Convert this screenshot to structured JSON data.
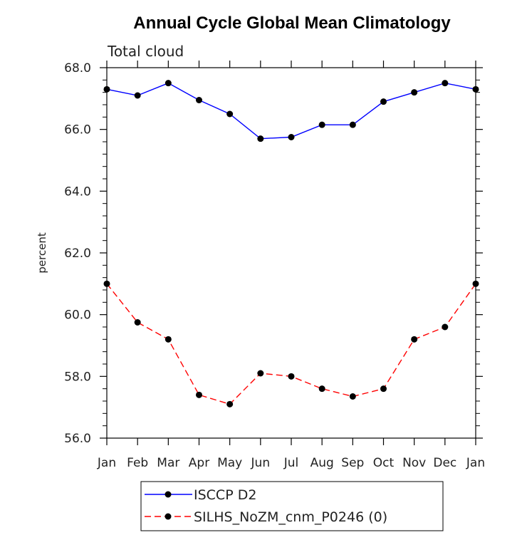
{
  "chart_data": {
    "type": "line",
    "title": "Annual Cycle Global Mean Climatology",
    "subtitle": "Total cloud",
    "xlabel": "",
    "ylabel": "percent",
    "categories": [
      "Jan",
      "Feb",
      "Mar",
      "Apr",
      "May",
      "Jun",
      "Jul",
      "Aug",
      "Sep",
      "Oct",
      "Nov",
      "Dec",
      "Jan"
    ],
    "ylim": [
      56.0,
      68.0
    ],
    "yticks": [
      "56.0",
      "58.0",
      "60.0",
      "62.0",
      "64.0",
      "66.0",
      "68.0"
    ],
    "grid": false,
    "legend_position": "bottom",
    "series": [
      {
        "name": "ISCCP D2",
        "color": "#0000ff",
        "style": "solid",
        "values": [
          67.3,
          67.1,
          67.5,
          66.95,
          66.5,
          65.7,
          65.75,
          66.15,
          66.15,
          66.9,
          67.2,
          67.5,
          67.3
        ]
      },
      {
        "name": "SILHS_NoZM_cnm_P0246 (0)",
        "color": "#ff0000",
        "style": "dashed",
        "values": [
          61.0,
          59.75,
          59.2,
          57.4,
          57.1,
          58.1,
          58.0,
          57.6,
          57.35,
          57.6,
          59.2,
          59.6,
          61.0
        ]
      }
    ]
  }
}
